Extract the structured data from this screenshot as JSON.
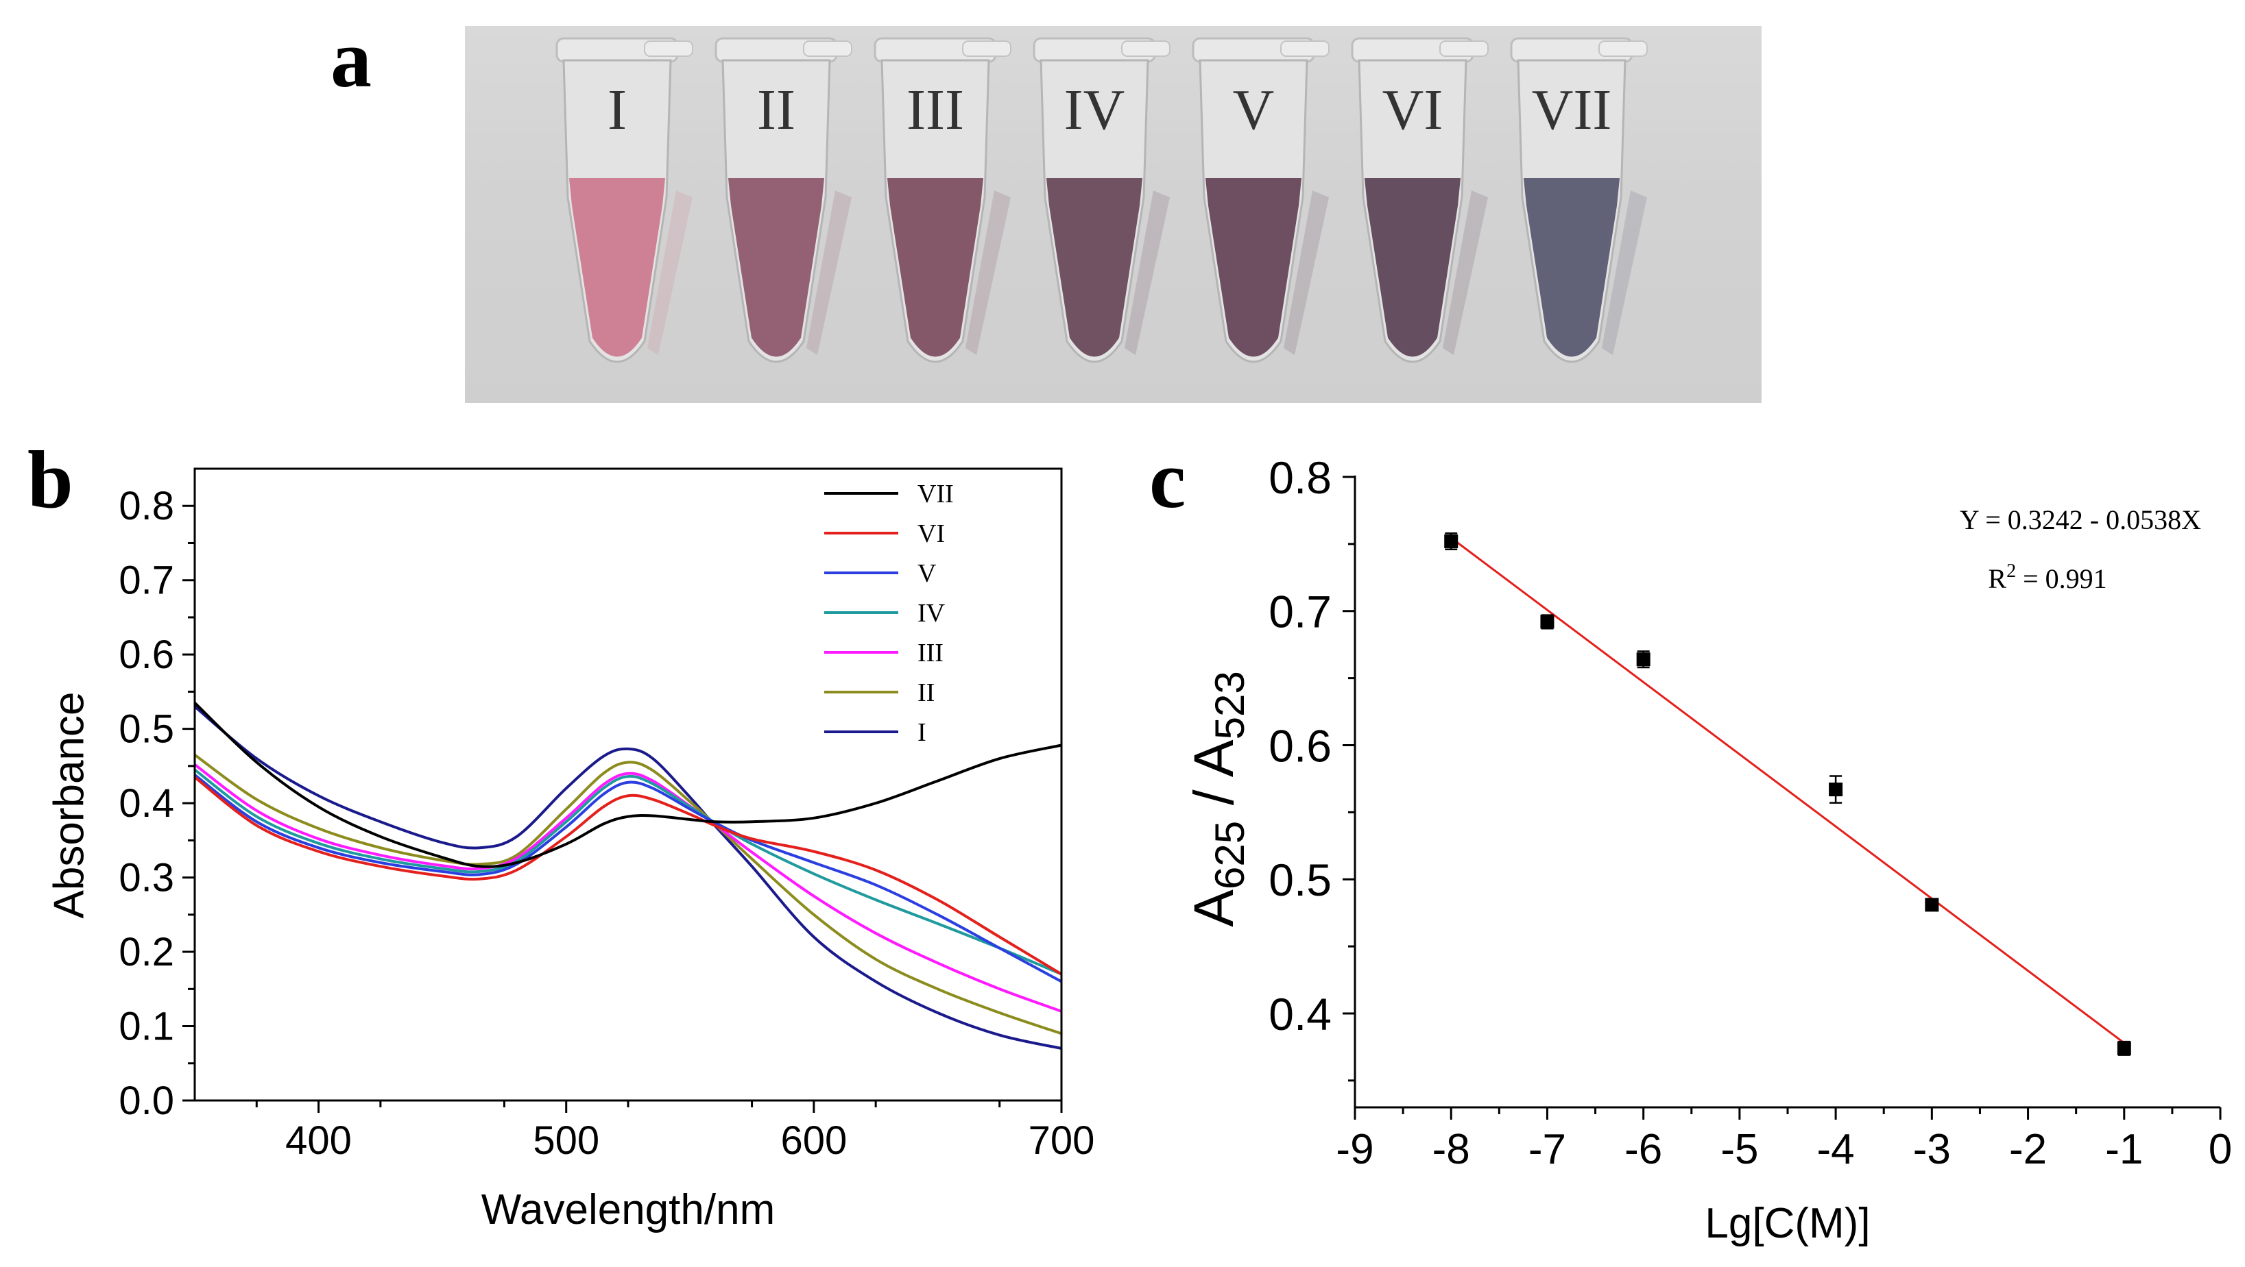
{
  "panels": {
    "a": {
      "label": "a",
      "tubes": [
        {
          "label": "I",
          "color": "#cc7a8f"
        },
        {
          "label": "II",
          "color": "#8f5a6e"
        },
        {
          "label": "III",
          "color": "#7e4f62"
        },
        {
          "label": "IV",
          "color": "#6a4a5c"
        },
        {
          "label": "V",
          "color": "#66475a"
        },
        {
          "label": "VI",
          "color": "#5e4658"
        },
        {
          "label": "VII",
          "color": "#5a5a72"
        }
      ]
    },
    "b": {
      "label": "b"
    },
    "c": {
      "label": "c"
    }
  },
  "chart_data": [
    {
      "type": "line",
      "panel": "b",
      "xlabel": "Wavelength/nm",
      "ylabel": "Absorbance",
      "xlim": [
        350,
        700
      ],
      "ylim": [
        0.0,
        0.85
      ],
      "xticks": [
        400,
        500,
        600,
        700
      ],
      "yticks": [
        0.0,
        0.1,
        0.2,
        0.3,
        0.4,
        0.5,
        0.6,
        0.7,
        0.8
      ],
      "ytick_labels": [
        "0.0",
        "0.1",
        "0.2",
        "0.3",
        "0.4",
        "0.5",
        "0.6",
        "0.7",
        "0.8"
      ],
      "x": [
        350,
        375,
        400,
        425,
        450,
        465,
        480,
        500,
        515,
        525,
        535,
        550,
        560,
        575,
        600,
        625,
        650,
        675,
        700
      ],
      "series": [
        {
          "name": "VII",
          "color": "#000000",
          "values": [
            0.535,
            0.455,
            0.395,
            0.355,
            0.327,
            0.315,
            0.32,
            0.345,
            0.372,
            0.382,
            0.383,
            0.378,
            0.375,
            0.375,
            0.38,
            0.4,
            0.43,
            0.46,
            0.478
          ]
        },
        {
          "name": "VI",
          "color": "#e4201c",
          "values": [
            0.435,
            0.37,
            0.335,
            0.315,
            0.302,
            0.298,
            0.31,
            0.355,
            0.395,
            0.41,
            0.405,
            0.385,
            0.37,
            0.352,
            0.335,
            0.31,
            0.27,
            0.22,
            0.17
          ]
        },
        {
          "name": "V",
          "color": "#2b3fe0",
          "values": [
            0.438,
            0.375,
            0.34,
            0.32,
            0.308,
            0.304,
            0.318,
            0.368,
            0.412,
            0.428,
            0.42,
            0.392,
            0.374,
            0.35,
            0.32,
            0.29,
            0.25,
            0.205,
            0.16
          ]
        },
        {
          "name": "IV",
          "color": "#1f9a9e",
          "values": [
            0.445,
            0.382,
            0.346,
            0.325,
            0.312,
            0.308,
            0.322,
            0.375,
            0.42,
            0.436,
            0.426,
            0.395,
            0.374,
            0.345,
            0.305,
            0.27,
            0.238,
            0.205,
            0.17
          ]
        },
        {
          "name": "III",
          "color": "#ff1aff",
          "values": [
            0.452,
            0.39,
            0.352,
            0.33,
            0.316,
            0.312,
            0.326,
            0.38,
            0.425,
            0.44,
            0.43,
            0.396,
            0.372,
            0.334,
            0.275,
            0.225,
            0.185,
            0.15,
            0.12
          ]
        },
        {
          "name": "II",
          "color": "#8c8c1e",
          "values": [
            0.465,
            0.405,
            0.366,
            0.34,
            0.323,
            0.318,
            0.33,
            0.392,
            0.44,
            0.455,
            0.444,
            0.402,
            0.372,
            0.325,
            0.25,
            0.19,
            0.15,
            0.118,
            0.09
          ]
        },
        {
          "name": "I",
          "color": "#1a1a8c",
          "values": [
            0.53,
            0.46,
            0.41,
            0.375,
            0.347,
            0.34,
            0.355,
            0.42,
            0.463,
            0.473,
            0.46,
            0.408,
            0.37,
            0.315,
            0.22,
            0.16,
            0.118,
            0.088,
            0.07
          ]
        }
      ],
      "legend_position": "top-right"
    },
    {
      "type": "scatter",
      "panel": "c",
      "xlabel": "Lg[C(M)]",
      "ylabel": {
        "base": "A",
        "sub1": "625",
        "sep": " / ",
        "base2": "A",
        "sub2": "523"
      },
      "xlim": [
        -9,
        0
      ],
      "ylim": [
        0.33,
        0.8
      ],
      "xticks": [
        -9,
        -8,
        -7,
        -6,
        -5,
        -4,
        -3,
        -2,
        -1,
        0
      ],
      "yticks": [
        0.4,
        0.5,
        0.6,
        0.7,
        0.8
      ],
      "ytick_labels": [
        "0.4",
        "0.5",
        "0.6",
        "0.7",
        "0.8"
      ],
      "points": [
        {
          "x": -8,
          "y": 0.752,
          "err": 0.006
        },
        {
          "x": -7,
          "y": 0.692,
          "err": 0.005
        },
        {
          "x": -6,
          "y": 0.664,
          "err": 0.006
        },
        {
          "x": -4,
          "y": 0.567,
          "err": 0.01
        },
        {
          "x": -3,
          "y": 0.481,
          "err": 0.003
        },
        {
          "x": -1,
          "y": 0.374,
          "err": 0.005
        }
      ],
      "fit": {
        "intercept": 0.3242,
        "slope": -0.0538,
        "x_range": [
          -8,
          -1
        ],
        "color": "#e4201c"
      },
      "equation_text": "Y = 0.3242 - 0.0538X",
      "r2": {
        "prefix": "R",
        "exp": "2",
        "rest": " = 0.991"
      }
    }
  ]
}
